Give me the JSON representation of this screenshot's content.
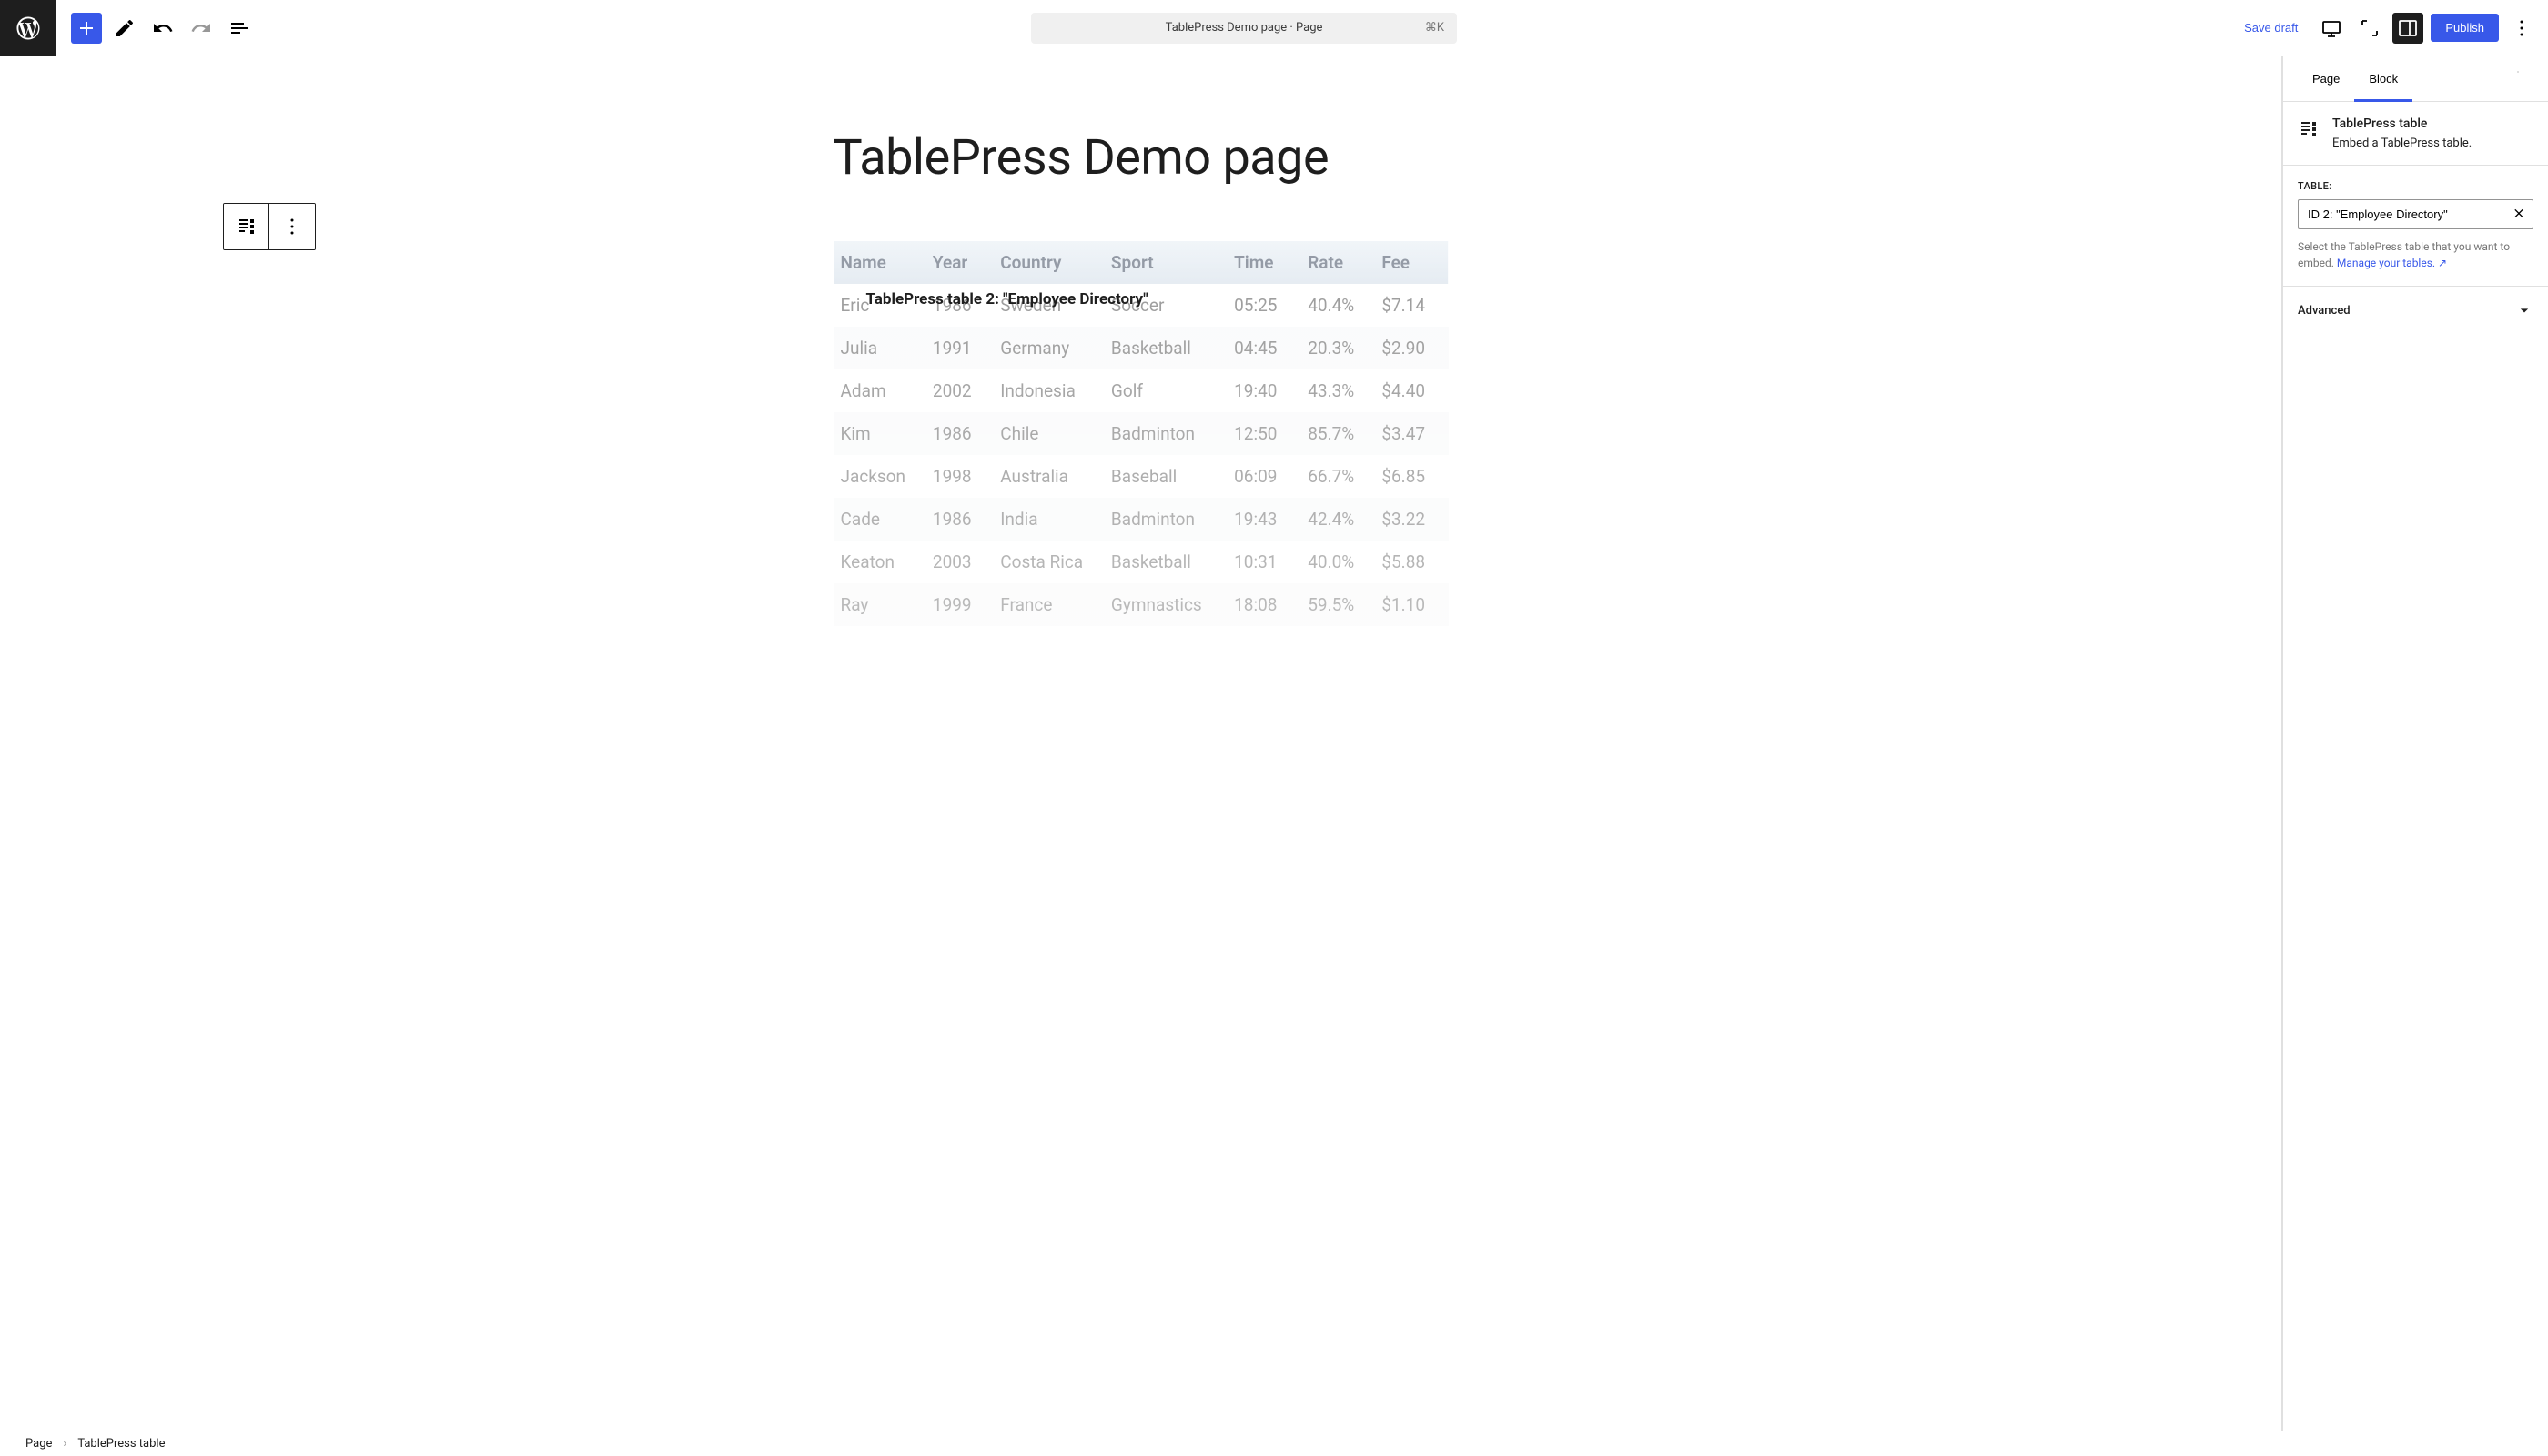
{
  "topbar": {
    "page_selector": "TablePress Demo page · Page",
    "shortcut": "⌘K",
    "save_draft": "Save draft",
    "publish": "Publish"
  },
  "editor": {
    "page_title": "TablePress Demo page",
    "block_label": "TablePress table 2: \"Employee Directory\""
  },
  "table": {
    "columns": [
      "Name",
      "Year",
      "Country",
      "Sport",
      "Time",
      "Rate",
      "Fee"
    ],
    "rows": [
      [
        "Eric",
        "1986",
        "Sweden",
        "Soccer",
        "05:25",
        "40.4%",
        "$7.14"
      ],
      [
        "Julia",
        "1991",
        "Germany",
        "Basketball",
        "04:45",
        "20.3%",
        "$2.90"
      ],
      [
        "Adam",
        "2002",
        "Indonesia",
        "Golf",
        "19:40",
        "43.3%",
        "$4.40"
      ],
      [
        "Kim",
        "1986",
        "Chile",
        "Badminton",
        "12:50",
        "85.7%",
        "$3.47"
      ],
      [
        "Jackson",
        "1998",
        "Australia",
        "Baseball",
        "06:09",
        "66.7%",
        "$6.85"
      ],
      [
        "Cade",
        "1986",
        "India",
        "Badminton",
        "19:43",
        "42.4%",
        "$3.22"
      ],
      [
        "Keaton",
        "2003",
        "Costa Rica",
        "Basketball",
        "10:31",
        "40.0%",
        "$5.88"
      ],
      [
        "Ray",
        "1999",
        "France",
        "Gymnastics",
        "18:08",
        "59.5%",
        "$1.10"
      ]
    ],
    "col_widths": [
      "15%",
      "11%",
      "18%",
      "20%",
      "12%",
      "12%",
      "12%"
    ]
  },
  "sidebar": {
    "tab_page": "Page",
    "tab_block": "Block",
    "block_title": "TablePress table",
    "block_desc": "Embed a TablePress table.",
    "table_label": "TABLE:",
    "table_value": "ID 2: \"Employee Directory\"",
    "help_text": "Select the TablePress table that you want to embed. ",
    "help_link": "Manage your tables. ↗",
    "advanced": "Advanced"
  },
  "breadcrumb": {
    "root": "Page",
    "current": "TablePress table"
  },
  "colors": {
    "primary": "#3858e9",
    "dark": "#1e1e1e"
  }
}
